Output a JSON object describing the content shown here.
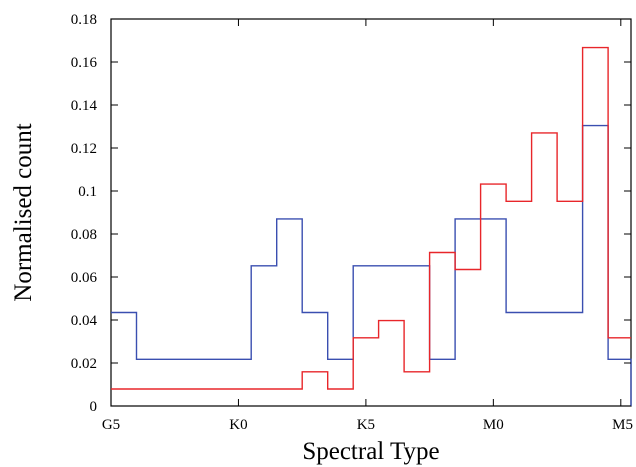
{
  "chart_data": {
    "type": "line",
    "title": "",
    "xlabel": "Spectral Type",
    "ylabel": "Normalised count",
    "ylim": [
      0,
      0.18
    ],
    "yticks": [
      0,
      0.02,
      0.04,
      0.06,
      0.08,
      0.1,
      0.12,
      0.14,
      0.16,
      0.18
    ],
    "ytick_labels": [
      "0",
      "0.02",
      "0.04",
      "0.06",
      "0.08",
      "0.1",
      "0.12",
      "0.14",
      "0.16",
      "0.18"
    ],
    "xticks": [
      {
        "label": "G5",
        "value": 0
      },
      {
        "label": "K0",
        "value": 5
      },
      {
        "label": "K5",
        "value": 10
      },
      {
        "label": "M0",
        "value": 15
      },
      {
        "label": "M5",
        "value": 20
      }
    ],
    "xlim": [
      0,
      20.4
    ],
    "grid": false,
    "legend": "none",
    "series": [
      {
        "color": "#3a4fb0",
        "drawstyle": "steps",
        "edges": [
          0,
          1,
          5.5,
          6.5,
          7.5,
          8.5,
          9.5,
          12.5,
          13.5,
          15.5,
          18.5,
          19.5,
          20.4
        ],
        "values": [
          0.0435,
          0.0217,
          0.0652,
          0.087,
          0.0435,
          0.0217,
          0.0652,
          0.0217,
          0.087,
          0.0435,
          0.1304,
          0.0217
        ],
        "end_value": 0
      },
      {
        "color": "#e8262a",
        "drawstyle": "steps",
        "edges": [
          0,
          7.5,
          8.5,
          9.5,
          10.5,
          11.5,
          12.5,
          13.5,
          14.5,
          15.5,
          16.5,
          17.5,
          18.5,
          19.5,
          20.4
        ],
        "values": [
          0.0079,
          0.0159,
          0.0079,
          0.0317,
          0.0397,
          0.0159,
          0.0714,
          0.0635,
          0.1032,
          0.0952,
          0.127,
          0.0952,
          0.1667,
          0.0317
        ],
        "end_value": null
      }
    ]
  }
}
